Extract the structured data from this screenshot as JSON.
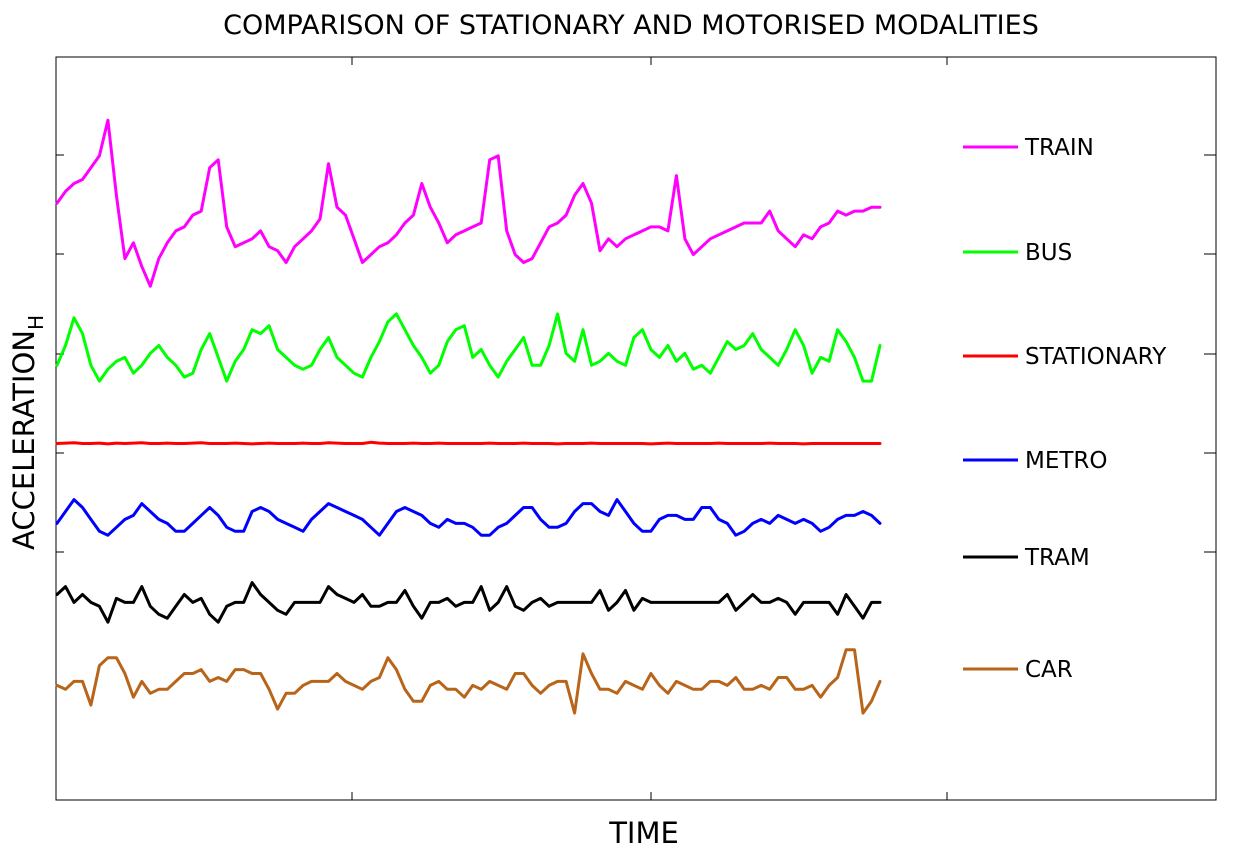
{
  "chart_data": {
    "type": "line",
    "title": "COMPARISON OF STATIONARY AND MOTORISED MODALITIES",
    "xlabel": "TIME",
    "ylabel": "ACCELERATION",
    "ylabel_subscript": "H",
    "grid": false,
    "legend_position": "right",
    "series": [
      {
        "name": "TRAIN",
        "color": "#ff00ff",
        "values": [
          14.1,
          14.4,
          14.6,
          14.7,
          15.0,
          15.3,
          16.2,
          14.3,
          12.7,
          13.1,
          12.5,
          12.0,
          12.7,
          13.1,
          13.4,
          13.5,
          13.8,
          13.9,
          15.0,
          15.2,
          13.5,
          13.0,
          13.1,
          13.2,
          13.4,
          13.0,
          12.9,
          12.6,
          13.0,
          13.2,
          13.4,
          13.7,
          15.1,
          14.0,
          13.8,
          13.2,
          12.6,
          12.8,
          13.0,
          13.1,
          13.3,
          13.6,
          13.8,
          14.6,
          14.0,
          13.6,
          13.1,
          13.3,
          13.4,
          13.5,
          13.6,
          15.2,
          15.3,
          13.4,
          12.8,
          12.6,
          12.7,
          13.1,
          13.5,
          13.6,
          13.8,
          14.3,
          14.6,
          14.1,
          12.9,
          13.2,
          13.0,
          13.2,
          13.3,
          13.4,
          13.5,
          13.5,
          13.4,
          14.8,
          13.2,
          12.8,
          13.0,
          13.2,
          13.3,
          13.4,
          13.5,
          13.6,
          13.6,
          13.6,
          13.9,
          13.4,
          13.2,
          13.0,
          13.3,
          13.2,
          13.5,
          13.6,
          13.9,
          13.8,
          13.9,
          13.9,
          14.0,
          14.0
        ]
      },
      {
        "name": "BUS",
        "color": "#00ff00",
        "values": [
          10.0,
          10.5,
          11.2,
          10.8,
          10.0,
          9.6,
          9.9,
          10.1,
          10.2,
          9.8,
          10.0,
          10.3,
          10.5,
          10.2,
          10.0,
          9.7,
          9.8,
          10.4,
          10.8,
          10.2,
          9.6,
          10.1,
          10.4,
          10.9,
          10.8,
          11.0,
          10.4,
          10.2,
          10.0,
          9.9,
          10.0,
          10.4,
          10.7,
          10.2,
          10.0,
          9.8,
          9.7,
          10.2,
          10.6,
          11.1,
          11.3,
          10.9,
          10.5,
          10.2,
          9.8,
          10.0,
          10.6,
          10.9,
          11.0,
          10.2,
          10.4,
          10.0,
          9.7,
          10.1,
          10.4,
          10.7,
          10.0,
          10.0,
          10.5,
          11.3,
          10.3,
          10.1,
          10.9,
          10.0,
          10.1,
          10.3,
          10.1,
          10.0,
          10.7,
          10.9,
          10.4,
          10.2,
          10.5,
          10.1,
          10.3,
          9.9,
          10.0,
          9.8,
          10.2,
          10.6,
          10.4,
          10.5,
          10.8,
          10.4,
          10.2,
          10.0,
          10.4,
          10.9,
          10.5,
          9.8,
          10.2,
          10.1,
          10.9,
          10.6,
          10.2,
          9.6,
          9.6,
          10.5
        ]
      },
      {
        "name": "STATIONARY",
        "color": "#ff0000",
        "values": [
          8.02,
          8.03,
          8.04,
          8.02,
          8.02,
          8.03,
          8.01,
          8.03,
          8.02,
          8.03,
          8.04,
          8.02,
          8.02,
          8.03,
          8.02,
          8.02,
          8.03,
          8.04,
          8.02,
          8.02,
          8.02,
          8.03,
          8.02,
          8.01,
          8.02,
          8.03,
          8.02,
          8.02,
          8.02,
          8.03,
          8.02,
          8.02,
          8.04,
          8.03,
          8.02,
          8.02,
          8.02,
          8.05,
          8.03,
          8.02,
          8.02,
          8.02,
          8.03,
          8.02,
          8.02,
          8.03,
          8.02,
          8.02,
          8.02,
          8.02,
          8.02,
          8.03,
          8.02,
          8.02,
          8.02,
          8.03,
          8.02,
          8.02,
          8.02,
          8.01,
          8.02,
          8.02,
          8.02,
          8.03,
          8.02,
          8.02,
          8.02,
          8.02,
          8.02,
          8.02,
          8.01,
          8.02,
          8.03,
          8.02,
          8.02,
          8.02,
          8.02,
          8.02,
          8.03,
          8.02,
          8.02,
          8.02,
          8.02,
          8.02,
          8.03,
          8.02,
          8.02,
          8.02,
          8.01,
          8.02,
          8.02,
          8.02,
          8.02,
          8.02,
          8.02,
          8.02,
          8.02,
          8.02
        ]
      },
      {
        "name": "METRO",
        "color": "#0000ff",
        "values": [
          6.0,
          6.3,
          6.6,
          6.4,
          6.1,
          5.8,
          5.7,
          5.9,
          6.1,
          6.2,
          6.5,
          6.3,
          6.1,
          6.0,
          5.8,
          5.8,
          6.0,
          6.2,
          6.4,
          6.2,
          5.9,
          5.8,
          5.8,
          6.3,
          6.4,
          6.3,
          6.1,
          6.0,
          5.9,
          5.8,
          6.1,
          6.3,
          6.5,
          6.4,
          6.3,
          6.2,
          6.1,
          5.9,
          5.7,
          6.0,
          6.3,
          6.4,
          6.3,
          6.2,
          6.0,
          5.9,
          6.1,
          6.0,
          6.0,
          5.9,
          5.7,
          5.7,
          5.9,
          6.0,
          6.2,
          6.4,
          6.4,
          6.1,
          5.9,
          5.9,
          6.0,
          6.3,
          6.5,
          6.5,
          6.3,
          6.2,
          6.6,
          6.3,
          6.0,
          5.8,
          5.8,
          6.1,
          6.2,
          6.2,
          6.1,
          6.1,
          6.4,
          6.4,
          6.1,
          6.0,
          5.7,
          5.8,
          6.0,
          6.1,
          6.0,
          6.2,
          6.1,
          6.0,
          6.1,
          6.0,
          5.8,
          5.9,
          6.1,
          6.2,
          6.2,
          6.3,
          6.2,
          6.0
        ]
      },
      {
        "name": "TRAM",
        "color": "#000000",
        "values": [
          4.2,
          4.4,
          4.0,
          4.2,
          4.0,
          3.9,
          3.5,
          4.1,
          4.0,
          4.0,
          4.4,
          3.9,
          3.7,
          3.6,
          3.9,
          4.2,
          4.0,
          4.1,
          3.7,
          3.5,
          3.9,
          4.0,
          4.0,
          4.5,
          4.2,
          4.0,
          3.8,
          3.7,
          4.0,
          4.0,
          4.0,
          4.0,
          4.4,
          4.2,
          4.1,
          4.0,
          4.2,
          3.9,
          3.9,
          4.0,
          4.0,
          4.3,
          3.9,
          3.6,
          4.0,
          4.0,
          4.1,
          3.9,
          4.0,
          4.0,
          4.4,
          3.8,
          4.0,
          4.4,
          3.9,
          3.8,
          4.0,
          4.1,
          3.9,
          4.0,
          4.0,
          4.0,
          4.0,
          4.0,
          4.3,
          3.8,
          4.0,
          4.3,
          3.8,
          4.1,
          4.0,
          4.0,
          4.0,
          4.0,
          4.0,
          4.0,
          4.0,
          4.0,
          4.0,
          4.2,
          3.8,
          4.0,
          4.2,
          4.0,
          4.0,
          4.1,
          4.0,
          3.7,
          4.0,
          4.0,
          4.0,
          4.0,
          3.7,
          4.2,
          3.9,
          3.6,
          4.0,
          4.0
        ]
      },
      {
        "name": "CAR",
        "color": "#b8651a",
        "values": [
          1.9,
          1.8,
          2.0,
          2.0,
          1.4,
          2.4,
          2.6,
          2.6,
          2.2,
          1.6,
          2.0,
          1.7,
          1.8,
          1.8,
          2.0,
          2.2,
          2.2,
          2.3,
          2.0,
          2.1,
          2.0,
          2.3,
          2.3,
          2.2,
          2.2,
          1.8,
          1.3,
          1.7,
          1.7,
          1.9,
          2.0,
          2.0,
          2.0,
          2.2,
          2.0,
          1.9,
          1.8,
          2.0,
          2.1,
          2.6,
          2.3,
          1.8,
          1.5,
          1.5,
          1.9,
          2.0,
          1.8,
          1.8,
          1.6,
          1.9,
          1.8,
          2.0,
          1.9,
          1.8,
          2.2,
          2.2,
          1.9,
          1.7,
          1.9,
          2.0,
          2.0,
          1.2,
          2.7,
          2.2,
          1.8,
          1.8,
          1.7,
          2.0,
          1.9,
          1.8,
          2.2,
          1.9,
          1.7,
          2.0,
          1.9,
          1.8,
          1.8,
          2.0,
          2.0,
          1.9,
          2.1,
          1.8,
          1.8,
          1.9,
          1.8,
          2.1,
          2.1,
          1.8,
          1.8,
          1.9,
          1.6,
          1.9,
          2.1,
          2.8,
          2.8,
          1.2,
          1.5,
          2.0
        ]
      }
    ]
  }
}
